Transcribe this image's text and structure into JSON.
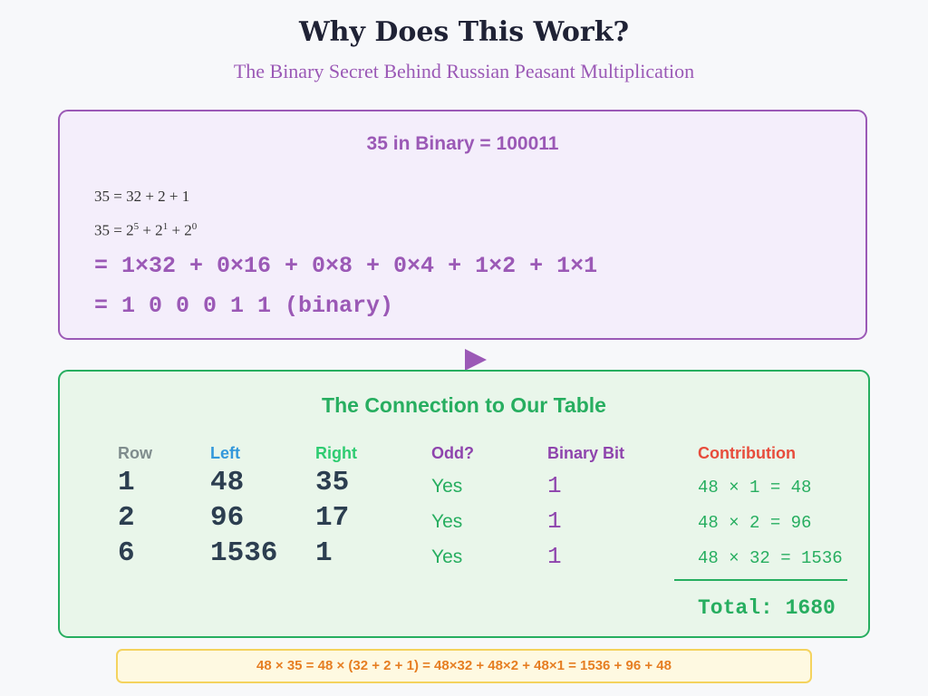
{
  "title": "Why Does This Work?",
  "subtitle": "The Binary Secret Behind Russian Peasant Multiplication",
  "binary_panel": {
    "heading": "35 in Binary = 100011",
    "line1": "35 = 32 + 2 + 1",
    "line2_prefix": "35 = 2",
    "line2_exp1": "5",
    "line2_mid1": " + 2",
    "line2_exp2": "1",
    "line2_mid2": " + 2",
    "line2_exp3": "0",
    "line3": "= 1×32 + 0×16 + 0×8 + 0×4 + 1×2 + 1×1",
    "line4": "= 1 0 0 0 1 1 (binary)"
  },
  "table_panel": {
    "heading": "The Connection to Our Table",
    "columns": {
      "row": "Row",
      "left": "Left",
      "right": "Right",
      "odd": "Odd?",
      "bit": "Binary Bit",
      "contribution": "Contribution"
    },
    "rows": [
      {
        "row": "1",
        "left": "48",
        "right": "35",
        "odd": "Yes",
        "bit": "1",
        "contribution": "48 × 1 = 48"
      },
      {
        "row": "2",
        "left": "96",
        "right": "17",
        "odd": "Yes",
        "bit": "1",
        "contribution": "48 × 2 = 96"
      },
      {
        "row": "6",
        "left": "1536",
        "right": "1",
        "odd": "Yes",
        "bit": "1",
        "contribution": "48 × 32 = 1536"
      }
    ],
    "total": "Total: 1680"
  },
  "equation": "48 × 35 = 48 × (32 + 2 + 1) = 48×32 + 48×2 + 48×1 = 1536 + 96 + 48",
  "colors": {
    "purple": "#9b59b6",
    "green": "#27ae60",
    "blue": "#3498db",
    "red": "#e74c3c",
    "orange": "#e67e22",
    "yellow_border": "#f4d35e"
  }
}
